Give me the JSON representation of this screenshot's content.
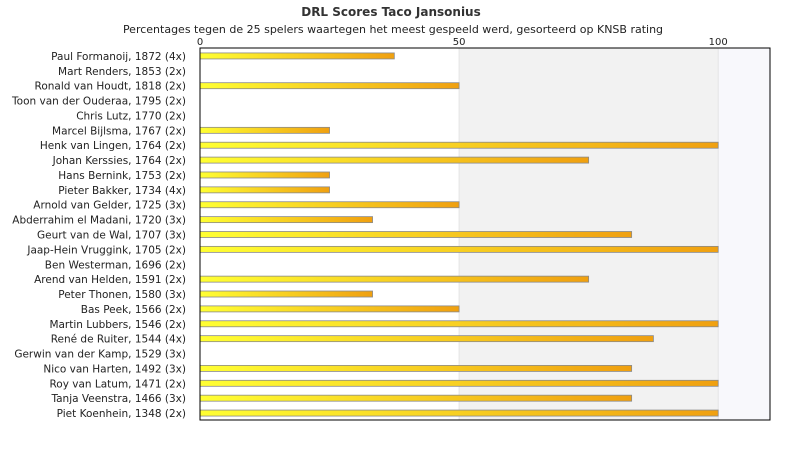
{
  "chart_data": {
    "type": "bar",
    "orientation": "horizontal",
    "title": "DRL Scores Taco Jansonius",
    "subtitle": "Percentages tegen de 25 spelers waartegen het meest gespeeld werd, gesorteerd op KNSB rating",
    "xlim": [
      0,
      110
    ],
    "xticks": [
      "0",
      "50",
      "100"
    ],
    "xtick_values": [
      0,
      50,
      100
    ],
    "grid": false,
    "categories": [
      "Paul Formanoij, 1872 (4x)",
      "Mart Renders, 1853 (2x)",
      "Ronald van Houdt, 1818 (2x)",
      "Toon van der Ouderaa, 1795 (2x)",
      "Chris Lutz, 1770 (2x)",
      "Marcel Bijlsma, 1767 (2x)",
      "Henk van Lingen, 1764 (2x)",
      "Johan Kerssies, 1764 (2x)",
      "Hans Bernink, 1753 (2x)",
      "Pieter Bakker, 1734 (4x)",
      "Arnold van Gelder, 1725 (3x)",
      "Abderrahim el Madani, 1720 (3x)",
      "Geurt van de Wal, 1707 (3x)",
      "Jaap-Hein Vruggink, 1705 (2x)",
      "Ben Westerman, 1696 (2x)",
      "Arend van Helden, 1591 (2x)",
      "Peter Thonen, 1580 (3x)",
      "Bas Peek, 1566 (2x)",
      "Martin Lubbers, 1546 (2x)",
      "René de Ruiter, 1544 (4x)",
      "Gerwin van der Kamp, 1529 (3x)",
      "Nico van Harten, 1492 (3x)",
      "Roy van Latum, 1471 (2x)",
      "Tanja Veenstra, 1466 (3x)",
      "Piet Koenhein, 1348 (2x)"
    ],
    "values": [
      37.5,
      0,
      50,
      0,
      0,
      25,
      100,
      75,
      25,
      25,
      50,
      33.3,
      83.3,
      100,
      0,
      75,
      33.3,
      50,
      100,
      87.5,
      0,
      83.3,
      100,
      83.3,
      100
    ],
    "colors": {
      "bar_start": "#ffff33",
      "bar_end": "#f0a010",
      "bar_border": "#8a8a8a",
      "band_light": "#ffffff",
      "band_shaded": "#f2f2f2",
      "band_right": "#f8f8fc",
      "axis": "#000000"
    }
  }
}
